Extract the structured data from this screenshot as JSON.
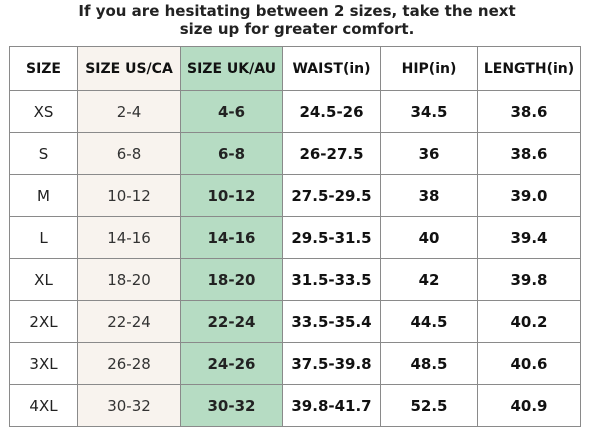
{
  "note": {
    "line1": "If you are hesitating between 2 sizes, take the next",
    "line2": "size up for greater comfort."
  },
  "table": {
    "headers": [
      "SIZE",
      "SIZE US/CA",
      "SIZE UK/AU",
      "WAIST(in)",
      "HIP(in)",
      "LENGTH(in)"
    ],
    "rows": [
      [
        "XS",
        "2-4",
        "4-6",
        "24.5-26",
        "34.5",
        "38.6"
      ],
      [
        "S",
        "6-8",
        "6-8",
        "26-27.5",
        "36",
        "38.6"
      ],
      [
        "M",
        "10-12",
        "10-12",
        "27.5-29.5",
        "38",
        "39.0"
      ],
      [
        "L",
        "14-16",
        "14-16",
        "29.5-31.5",
        "40",
        "39.4"
      ],
      [
        "XL",
        "18-20",
        "18-20",
        "31.5-33.5",
        "42",
        "39.8"
      ],
      [
        "2XL",
        "22-24",
        "22-24",
        "33.5-35.4",
        "44.5",
        "40.2"
      ],
      [
        "3XL",
        "26-28",
        "24-26",
        "37.5-39.8",
        "48.5",
        "40.6"
      ],
      [
        "4XL",
        "30-32",
        "30-32",
        "39.8-41.7",
        "52.5",
        "40.9"
      ]
    ]
  },
  "colors": {
    "us_column_bg": "#f8f3ee",
    "uk_column_bg": "#b6dcc3",
    "border": "#8a8a8a"
  }
}
